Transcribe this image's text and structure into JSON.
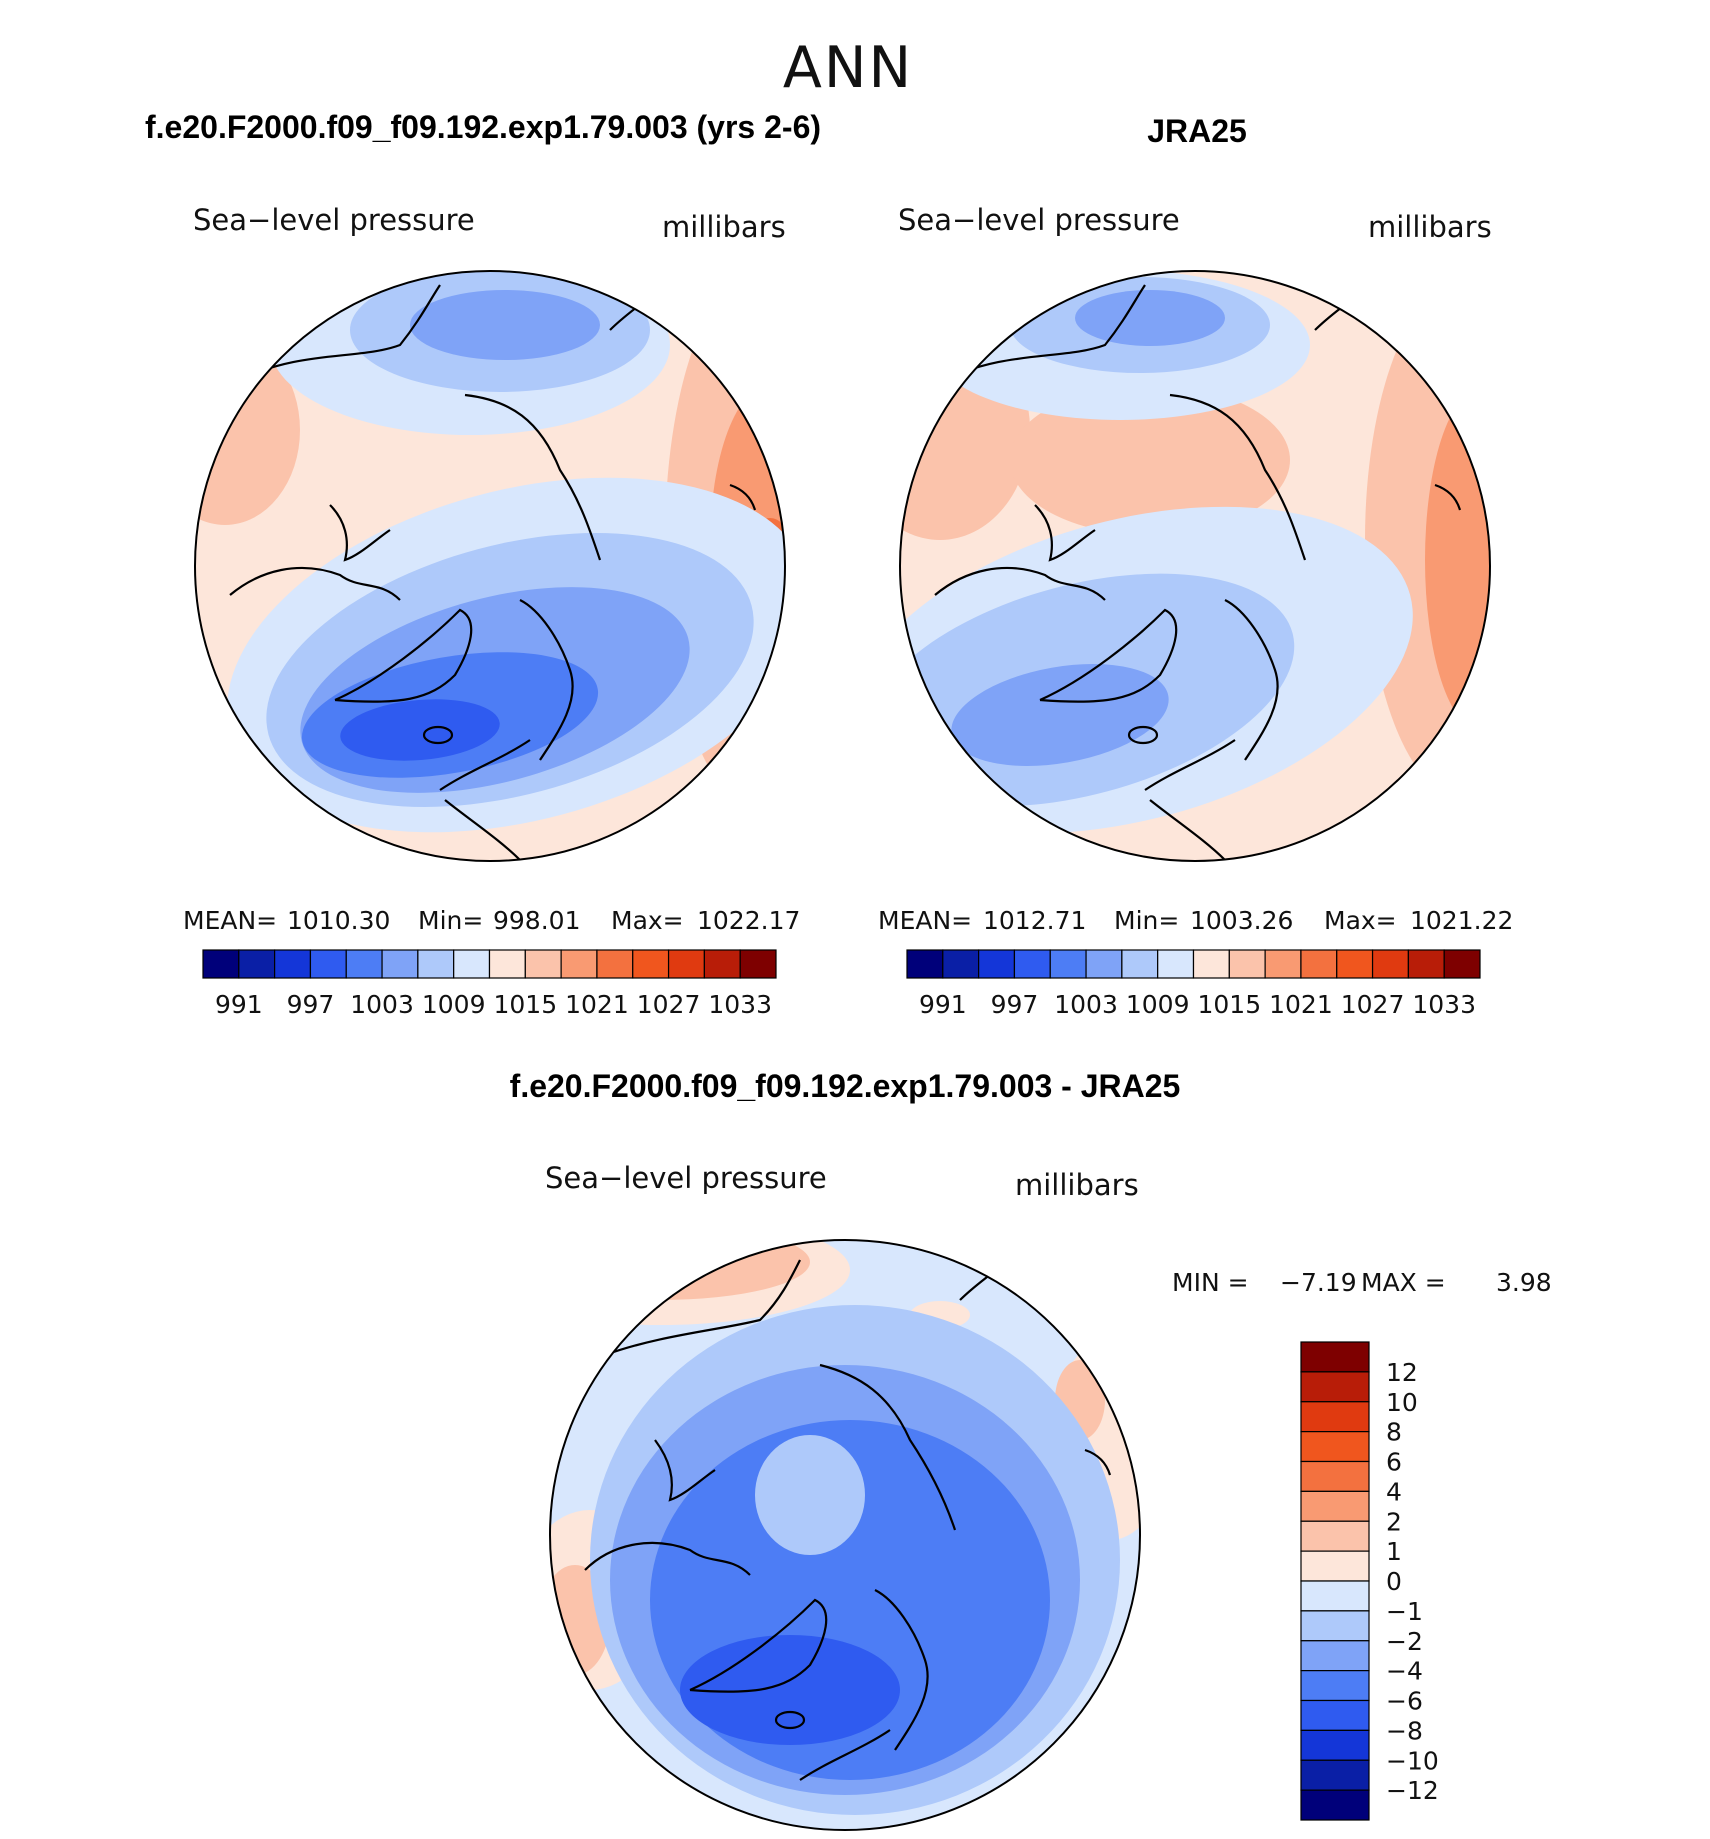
{
  "figure": {
    "season": "ANN",
    "panels": [
      {
        "id": "model",
        "title": "f.e20.F2000.f09_f09.192.exp1.79.003 (yrs 2-6)",
        "variable": "Sea−level pressure",
        "units": "millibars",
        "stats": {
          "mean_label": "MEAN=",
          "mean": "1010.30",
          "min_label": "Min=",
          "min": "998.01",
          "max_label": "Max=",
          "max": "1022.17"
        }
      },
      {
        "id": "obs",
        "title": "JRA25",
        "variable": "Sea−level pressure",
        "units": "millibars",
        "stats": {
          "mean_label": "MEAN=",
          "mean": "1012.71",
          "min_label": "Min=",
          "min": "1003.26",
          "max_label": "Max=",
          "max": "1021.22"
        }
      }
    ],
    "difference": {
      "title": "f.e20.F2000.f09_f09.192.exp1.79.003 - JRA25",
      "variable": "Sea−level pressure",
      "units": "millibars",
      "stats": {
        "min_label": "MIN =",
        "min": "−7.19",
        "max_label": "MAX =",
        "max": "3.98"
      }
    }
  },
  "colorbars": {
    "abs": {
      "labels": [
        "991",
        "997",
        "1003",
        "1009",
        "1015",
        "1021",
        "1027",
        "1033"
      ],
      "colors": [
        "#00007a",
        "#0a1fa6",
        "#1436d8",
        "#2f5bf0",
        "#4d7df5",
        "#7fa3f7",
        "#aec9fa",
        "#d8e7fd",
        "#fde6da",
        "#fbc3ab",
        "#f99a72",
        "#f3713f",
        "#f0561e",
        "#e03a10",
        "#b81d08",
        "#7e0000"
      ]
    },
    "diff": {
      "labels": [
        "12",
        "10",
        "8",
        "6",
        "4",
        "2",
        "1",
        "0",
        "−1",
        "−2",
        "−4",
        "−6",
        "−8",
        "−10",
        "−12"
      ],
      "colors": [
        "#7e0000",
        "#b81d08",
        "#e03a10",
        "#f0561e",
        "#f3713f",
        "#f99a72",
        "#fbc3ab",
        "#fde6da",
        "#d8e7fd",
        "#aec9fa",
        "#7fa3f7",
        "#4d7df5",
        "#2f5bf0",
        "#1436d8",
        "#0a1fa6",
        "#00007a"
      ]
    }
  }
}
